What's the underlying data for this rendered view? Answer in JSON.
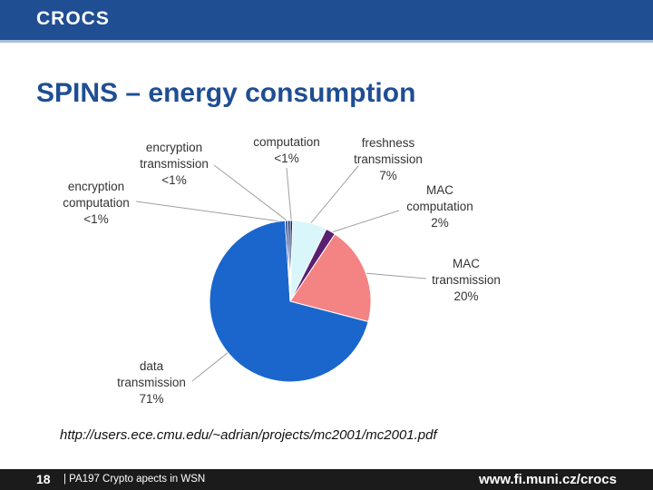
{
  "header": {
    "logo_text": "CROCS"
  },
  "slide": {
    "title": "SPINS – energy consumption"
  },
  "chart_data": {
    "type": "pie",
    "title": "",
    "slices": [
      {
        "label": [
          "computation",
          "<1%"
        ],
        "value": 0.5,
        "color": "#0e2a78"
      },
      {
        "label": [
          "freshness",
          "transmission",
          "7%"
        ],
        "value": 7,
        "color": "#d9f6fb"
      },
      {
        "label": [
          "MAC",
          "computation",
          "2%"
        ],
        "value": 2,
        "color": "#5a1f6e"
      },
      {
        "label": [
          "MAC",
          "transmission",
          "20%"
        ],
        "value": 20,
        "color": "#f48383"
      },
      {
        "label": [
          "data",
          "transmission",
          "71%"
        ],
        "value": 71,
        "color": "#1a66cc"
      },
      {
        "label": [
          "encryption",
          "computation",
          "<1%"
        ],
        "value": 0.5,
        "color": "#10307c"
      },
      {
        "label": [
          "encryption",
          "transmission",
          "<1%"
        ],
        "value": 0.5,
        "color": "#0c2570"
      }
    ]
  },
  "source": "http://users.ece.cmu.edu/~adrian/projects/mc2001/mc2001.pdf",
  "footer": {
    "page_number": "18",
    "text": "| PA197 Crypto apects in WSN",
    "url": "www.fi.muni.cz/crocs"
  }
}
